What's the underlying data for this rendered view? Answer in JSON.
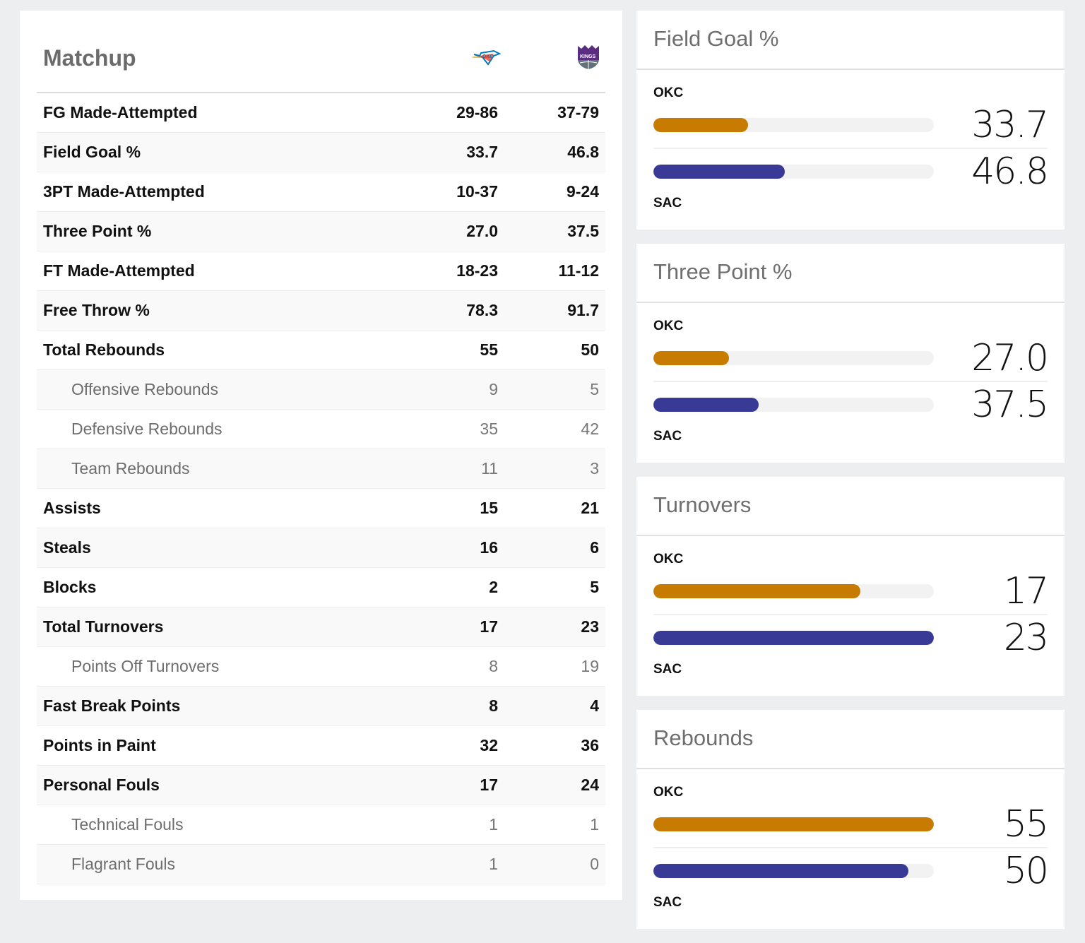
{
  "matchup": {
    "title": "Matchup",
    "teams": [
      {
        "abbr": "OKC",
        "logo": "okc-thunder-logo",
        "color": "#c77b00"
      },
      {
        "abbr": "SAC",
        "logo": "sac-kings-logo",
        "color": "#393a96"
      }
    ],
    "rows": [
      {
        "label": "FG Made-Attempted",
        "okc": "29-86",
        "sac": "37-79",
        "sub": false
      },
      {
        "label": "Field Goal %",
        "okc": "33.7",
        "sac": "46.8",
        "sub": false
      },
      {
        "label": "3PT Made-Attempted",
        "okc": "10-37",
        "sac": "9-24",
        "sub": false
      },
      {
        "label": "Three Point %",
        "okc": "27.0",
        "sac": "37.5",
        "sub": false
      },
      {
        "label": "FT Made-Attempted",
        "okc": "18-23",
        "sac": "11-12",
        "sub": false
      },
      {
        "label": "Free Throw %",
        "okc": "78.3",
        "sac": "91.7",
        "sub": false
      },
      {
        "label": "Total Rebounds",
        "okc": "55",
        "sac": "50",
        "sub": false
      },
      {
        "label": "Offensive Rebounds",
        "okc": "9",
        "sac": "5",
        "sub": true
      },
      {
        "label": "Defensive Rebounds",
        "okc": "35",
        "sac": "42",
        "sub": true
      },
      {
        "label": "Team Rebounds",
        "okc": "11",
        "sac": "3",
        "sub": true
      },
      {
        "label": "Assists",
        "okc": "15",
        "sac": "21",
        "sub": false
      },
      {
        "label": "Steals",
        "okc": "16",
        "sac": "6",
        "sub": false
      },
      {
        "label": "Blocks",
        "okc": "2",
        "sac": "5",
        "sub": false
      },
      {
        "label": "Total Turnovers",
        "okc": "17",
        "sac": "23",
        "sub": false
      },
      {
        "label": "Points Off Turnovers",
        "okc": "8",
        "sac": "19",
        "sub": true
      },
      {
        "label": "Fast Break Points",
        "okc": "8",
        "sac": "4",
        "sub": false
      },
      {
        "label": "Points in Paint",
        "okc": "32",
        "sac": "36",
        "sub": false
      },
      {
        "label": "Personal Fouls",
        "okc": "17",
        "sac": "24",
        "sub": false
      },
      {
        "label": "Technical Fouls",
        "okc": "1",
        "sac": "1",
        "sub": true
      },
      {
        "label": "Flagrant Fouls",
        "okc": "1",
        "sac": "0",
        "sub": true
      }
    ]
  },
  "panels": [
    {
      "title": "Field Goal %",
      "top_team": "OKC",
      "bottom_team": "SAC",
      "okc_value": "33.7",
      "sac_value": "46.8",
      "okc_fill_pct": 33.7,
      "sac_fill_pct": 46.8
    },
    {
      "title": "Three Point %",
      "top_team": "OKC",
      "bottom_team": "SAC",
      "okc_value": "27.0",
      "sac_value": "37.5",
      "okc_fill_pct": 27.0,
      "sac_fill_pct": 37.5
    },
    {
      "title": "Turnovers",
      "top_team": "OKC",
      "bottom_team": "SAC",
      "okc_value": "17",
      "sac_value": "23",
      "okc_fill_pct": 73.9,
      "sac_fill_pct": 100
    },
    {
      "title": "Rebounds",
      "top_team": "OKC",
      "bottom_team": "SAC",
      "okc_value": "55",
      "sac_value": "50",
      "okc_fill_pct": 100,
      "sac_fill_pct": 90.9
    }
  ]
}
